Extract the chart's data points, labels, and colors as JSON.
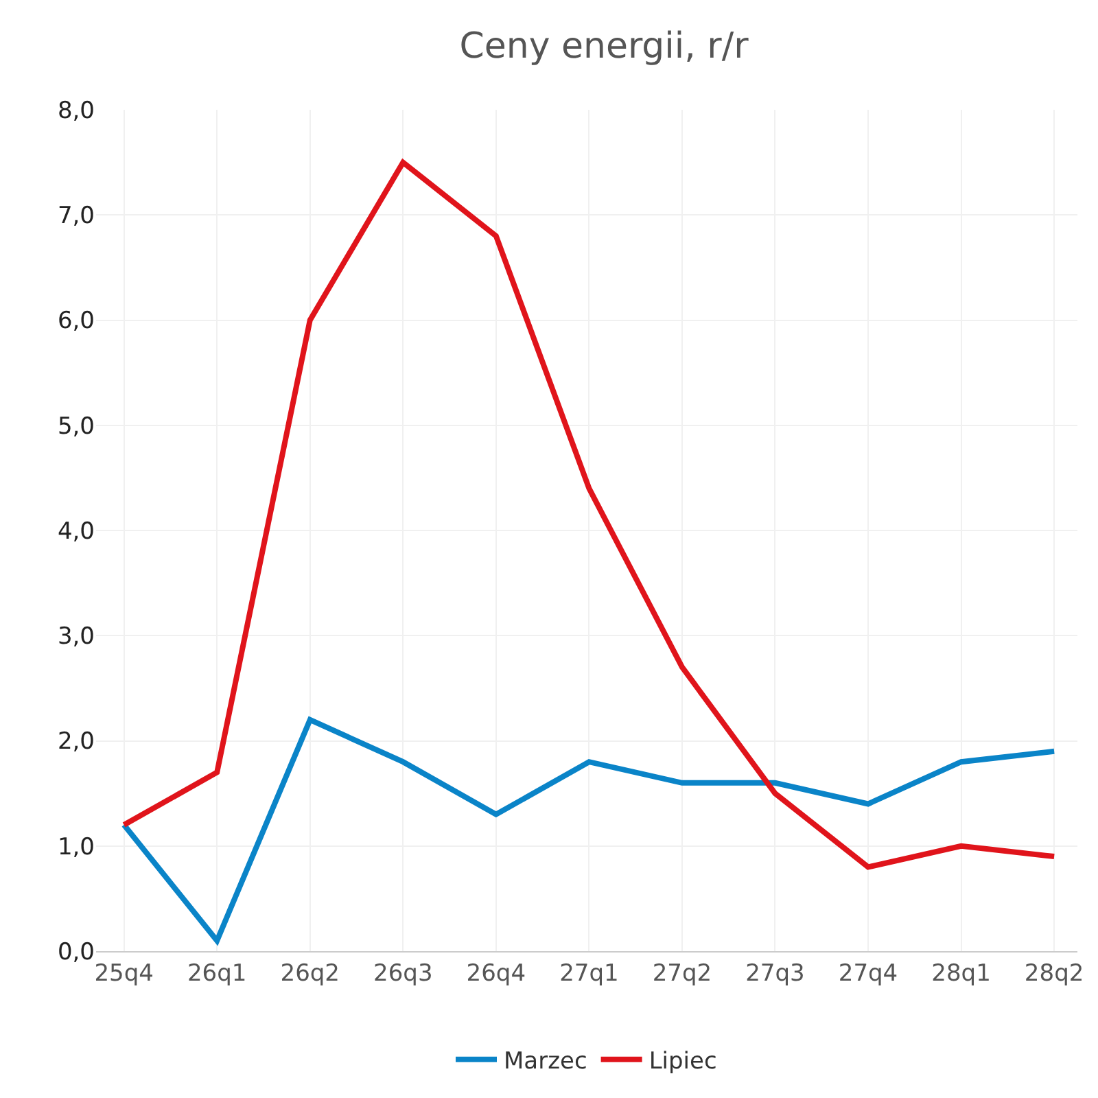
{
  "chart_data": {
    "type": "line",
    "title": "Ceny energii, r/r",
    "categories": [
      "25q4",
      "26q1",
      "26q2",
      "26q3",
      "26q4",
      "27q1",
      "27q2",
      "27q3",
      "27q4",
      "28q1",
      "28q2"
    ],
    "series": [
      {
        "name": "Marzec",
        "color": "#0a84c8",
        "values": [
          1.2,
          0.1,
          2.2,
          1.8,
          1.3,
          1.8,
          1.6,
          1.6,
          1.4,
          1.8,
          1.9
        ]
      },
      {
        "name": "Lipiec",
        "color": "#e0141b",
        "values": [
          1.2,
          1.7,
          6.0,
          7.5,
          6.8,
          4.4,
          2.7,
          1.5,
          0.8,
          1.0,
          0.9
        ]
      }
    ],
    "ylim": [
      0,
      8
    ],
    "yticks": [
      {
        "value": 0,
        "label": "0,0"
      },
      {
        "value": 1,
        "label": "1,0"
      },
      {
        "value": 2,
        "label": "2,0"
      },
      {
        "value": 3,
        "label": "3,0"
      },
      {
        "value": 4,
        "label": "4,0"
      },
      {
        "value": 5,
        "label": "5,0"
      },
      {
        "value": 6,
        "label": "6,0"
      },
      {
        "value": 7,
        "label": "7,0"
      },
      {
        "value": 8,
        "label": "8,0"
      }
    ],
    "grid": true,
    "legend": "bottom",
    "marker": "none",
    "line_style": "solid"
  }
}
